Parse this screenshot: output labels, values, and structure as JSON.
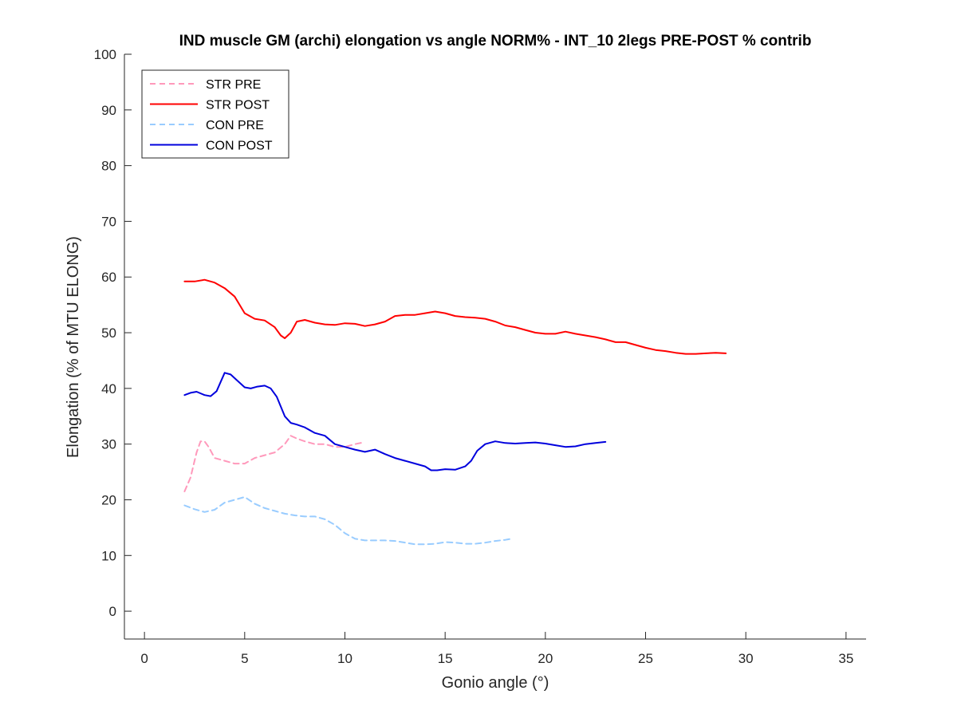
{
  "colors": {
    "axis": "#262626",
    "str_pre": "#ff99bb",
    "str_post": "#ff0000",
    "con_pre": "#99ccff",
    "con_post": "#0000dd"
  },
  "chart_data": {
    "type": "line",
    "title": "IND muscle GM (archi) elongation vs angle NORM% - INT_10 2legs PRE-POST % contrib",
    "xlabel": "Gonio angle (°)",
    "ylabel": "Elongation (% of MTU ELONG)",
    "xlim": [
      -1,
      36
    ],
    "ylim": [
      -5,
      100
    ],
    "xticks": [
      0,
      5,
      10,
      15,
      20,
      25,
      30,
      35
    ],
    "yticks": [
      0,
      10,
      20,
      30,
      40,
      50,
      60,
      70,
      80,
      90,
      100
    ],
    "grid": false,
    "legend_position": "top-left",
    "series": [
      {
        "name": "STR PRE",
        "color_key": "str_pre",
        "style": "dashed",
        "x": [
          2.0,
          2.3,
          2.6,
          2.8,
          3.0,
          3.2,
          3.5,
          4.0,
          4.5,
          5.0,
          5.5,
          6.0,
          6.5,
          7.0,
          7.3,
          7.6,
          8.0,
          8.5,
          9.0,
          9.5,
          10.0,
          10.5,
          10.9
        ],
        "y": [
          21.5,
          24.0,
          28.5,
          30.5,
          30.5,
          29.5,
          27.5,
          27.0,
          26.5,
          26.5,
          27.5,
          28.0,
          28.5,
          30.0,
          31.5,
          31.0,
          30.5,
          30.0,
          30.0,
          29.5,
          29.5,
          30.0,
          30.3
        ]
      },
      {
        "name": "STR POST",
        "color_key": "str_post",
        "style": "solid",
        "x": [
          2.0,
          2.5,
          3.0,
          3.5,
          4.0,
          4.5,
          5.0,
          5.5,
          6.0,
          6.5,
          6.8,
          7.0,
          7.3,
          7.6,
          8.0,
          8.5,
          9.0,
          9.5,
          10.0,
          10.5,
          11.0,
          11.5,
          12.0,
          12.5,
          13.0,
          13.5,
          14.0,
          14.5,
          15.0,
          15.5,
          16.0,
          16.5,
          17.0,
          17.5,
          18.0,
          18.5,
          19.0,
          19.5,
          20.0,
          20.5,
          21.0,
          21.5,
          22.0,
          22.5,
          23.0,
          23.5,
          24.0,
          24.5,
          25.0,
          25.5,
          26.0,
          26.5,
          27.0,
          27.5,
          28.0,
          28.5,
          29.0
        ],
        "y": [
          59.2,
          59.2,
          59.5,
          59.0,
          58.0,
          56.5,
          53.5,
          52.5,
          52.2,
          51.0,
          49.5,
          49.0,
          50.0,
          52.0,
          52.3,
          51.8,
          51.5,
          51.4,
          51.7,
          51.6,
          51.2,
          51.5,
          52.0,
          53.0,
          53.2,
          53.2,
          53.5,
          53.8,
          53.5,
          53.0,
          52.8,
          52.7,
          52.5,
          52.0,
          51.3,
          51.0,
          50.5,
          50.0,
          49.8,
          49.8,
          50.2,
          49.8,
          49.5,
          49.2,
          48.8,
          48.3,
          48.3,
          47.8,
          47.3,
          46.9,
          46.7,
          46.4,
          46.2,
          46.2,
          46.3,
          46.4,
          46.3
        ]
      },
      {
        "name": "CON PRE",
        "color_key": "con_pre",
        "style": "dashed",
        "x": [
          2.0,
          2.5,
          3.0,
          3.5,
          4.0,
          4.5,
          5.0,
          5.5,
          6.0,
          6.5,
          7.0,
          7.5,
          8.0,
          8.5,
          9.0,
          9.5,
          10.0,
          10.5,
          11.0,
          11.5,
          12.0,
          12.5,
          13.0,
          13.5,
          14.0,
          14.5,
          15.0,
          15.5,
          16.0,
          16.5,
          17.0,
          17.5,
          18.0,
          18.3
        ],
        "y": [
          19.0,
          18.3,
          17.8,
          18.2,
          19.5,
          20.0,
          20.5,
          19.3,
          18.5,
          18.0,
          17.5,
          17.2,
          17.0,
          17.0,
          16.5,
          15.5,
          14.0,
          13.0,
          12.7,
          12.7,
          12.7,
          12.6,
          12.3,
          12.0,
          12.0,
          12.1,
          12.4,
          12.3,
          12.1,
          12.1,
          12.3,
          12.6,
          12.8,
          13.0
        ]
      },
      {
        "name": "CON POST",
        "color_key": "con_post",
        "style": "solid",
        "x": [
          2.0,
          2.3,
          2.6,
          3.0,
          3.3,
          3.6,
          4.0,
          4.3,
          4.6,
          5.0,
          5.3,
          5.6,
          6.0,
          6.3,
          6.6,
          7.0,
          7.3,
          7.6,
          8.0,
          8.5,
          9.0,
          9.5,
          10.0,
          10.5,
          11.0,
          11.5,
          12.0,
          12.5,
          13.0,
          13.5,
          14.0,
          14.3,
          14.6,
          15.0,
          15.5,
          16.0,
          16.3,
          16.6,
          17.0,
          17.5,
          18.0,
          18.5,
          19.0,
          19.5,
          20.0,
          20.5,
          21.0,
          21.5,
          22.0,
          22.5,
          23.0
        ],
        "y": [
          38.8,
          39.2,
          39.4,
          38.8,
          38.6,
          39.5,
          42.8,
          42.5,
          41.5,
          40.2,
          40.0,
          40.3,
          40.5,
          40.0,
          38.5,
          35.0,
          33.8,
          33.5,
          33.0,
          32.0,
          31.5,
          30.0,
          29.5,
          29.0,
          28.6,
          29.0,
          28.2,
          27.5,
          27.0,
          26.5,
          26.0,
          25.3,
          25.3,
          25.5,
          25.4,
          26.0,
          27.0,
          28.8,
          30.0,
          30.5,
          30.2,
          30.1,
          30.2,
          30.3,
          30.1,
          29.8,
          29.5,
          29.6,
          30.0,
          30.2,
          30.4
        ]
      }
    ]
  }
}
